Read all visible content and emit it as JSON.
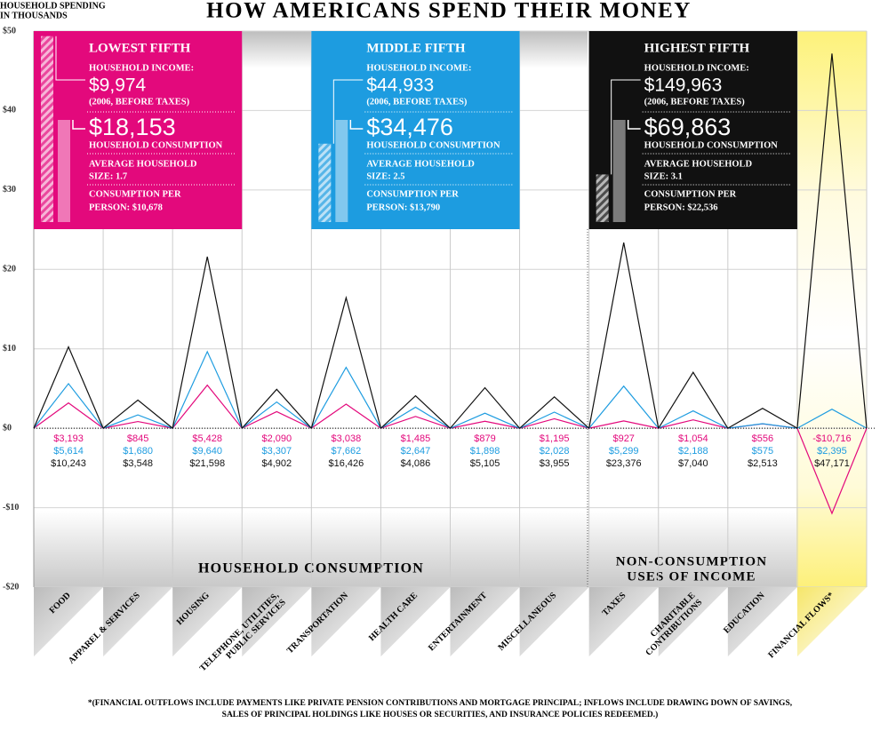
{
  "chart_data": {
    "type": "line",
    "title": "HOW AMERICANS SPEND THEIR MONEY",
    "y_axis_label": [
      "HOUSEHOLD SPENDING",
      "IN THOUSANDS"
    ],
    "categories": [
      [
        "FOOD"
      ],
      [
        "APPAREL & SERVICES"
      ],
      [
        "HOUSING"
      ],
      [
        "TELEPHONE, UTILITIES,",
        "PUBLIC SERVICES"
      ],
      [
        "TRANSPORTATION"
      ],
      [
        "HEALTH CARE"
      ],
      [
        "ENTERTAINMENT"
      ],
      [
        "MISCELLANEOUS"
      ],
      [
        "TAXES"
      ],
      [
        "CHARITABLE",
        "CONTRIBUTIONS"
      ],
      [
        "EDUCATION"
      ],
      [
        "FINANCIAL FLOWS*"
      ]
    ],
    "series": [
      {
        "name": "LOWEST FIFTH",
        "color": "#e3097c",
        "values": [
          3.193,
          0.845,
          5.428,
          2.09,
          3.038,
          1.485,
          0.879,
          1.195,
          0.927,
          1.054,
          0.556,
          -10.716
        ],
        "value_labels": [
          "$3,193",
          "$845",
          "$5,428",
          "$2,090",
          "$3,038",
          "$1,485",
          "$879",
          "$1,195",
          "$927",
          "$1,054",
          "$556",
          "-$10,716"
        ]
      },
      {
        "name": "MIDDLE FIFTH",
        "color": "#1d9ce0",
        "values": [
          5.614,
          1.68,
          9.64,
          3.307,
          7.662,
          2.647,
          1.898,
          2.028,
          5.299,
          2.188,
          0.575,
          2.395
        ],
        "value_labels": [
          "$5,614",
          "$1,680",
          "$9,640",
          "$3,307",
          "$7,662",
          "$2,647",
          "$1,898",
          "$2,028",
          "$5,299",
          "$2,188",
          "$575",
          "$2,395"
        ]
      },
      {
        "name": "HIGHEST FIFTH",
        "color": "#111111",
        "values": [
          10.243,
          3.548,
          21.598,
          4.902,
          16.426,
          4.086,
          5.105,
          3.955,
          23.376,
          7.04,
          2.513,
          47.171
        ],
        "value_labels": [
          "$10,243",
          "$3,548",
          "$21,598",
          "$4,902",
          "$16,426",
          "$4,086",
          "$5,105",
          "$3,955",
          "$23,376",
          "$7,040",
          "$2,513",
          "$47,171"
        ]
      }
    ],
    "panels": [
      {
        "income_heading": "HOUSEHOLD INCOME:",
        "income": 9974,
        "income_label": "$9,974",
        "income_note": "(2006, BEFORE TAXES)",
        "consumption": 18153,
        "consumption_label": "$18,153",
        "consumption_heading": "HOUSEHOLD CONSUMPTION",
        "size_lines": [
          "AVERAGE HOUSEHOLD",
          "SIZE: 1.7"
        ],
        "per_person_lines": [
          "CONSUMPTION PER",
          "PERSON: $10,678"
        ]
      },
      {
        "income_heading": "HOUSEHOLD INCOME:",
        "income": 44933,
        "income_label": "$44,933",
        "income_note": "(2006, BEFORE TAXES)",
        "consumption": 34476,
        "consumption_label": "$34,476",
        "consumption_heading": "HOUSEHOLD CONSUMPTION",
        "size_lines": [
          "AVERAGE HOUSEHOLD",
          "SIZE: 2.5"
        ],
        "per_person_lines": [
          "CONSUMPTION PER",
          "PERSON: $13,790"
        ]
      },
      {
        "income_heading": "HOUSEHOLD INCOME:",
        "income": 149963,
        "income_label": "$149,963",
        "income_note": "(2006, BEFORE TAXES)",
        "consumption": 69863,
        "consumption_label": "$69,863",
        "consumption_heading": "HOUSEHOLD CONSUMPTION",
        "size_lines": [
          "AVERAGE HOUSEHOLD",
          "SIZE: 3.1"
        ],
        "per_person_lines": [
          "CONSUMPTION PER",
          "PERSON: $22,536"
        ]
      }
    ],
    "section_labels": {
      "consumption": "HOUSEHOLD CONSUMPTION",
      "non_consumption": [
        "NON-CONSUMPTION",
        "USES OF INCOME"
      ]
    },
    "footnote": [
      "*(FINANCIAL OUTFLOWS INCLUDE PAYMENTS LIKE PRIVATE PENSION CONTRIBUTIONS AND MORTGAGE PRINCIPAL; INFLOWS INCLUDE DRAWING DOWN OF SAVINGS,",
      "SALES OF PRINCIPAL HOLDINGS LIKE HOUSES OR SECURITIES, AND INSURANCE POLICIES REDEEMED.)"
    ],
    "ylim": [
      -20,
      50
    ],
    "yticks": [
      {
        "value": -20,
        "label": "-$20"
      },
      {
        "value": -10,
        "label": "-$10"
      },
      {
        "value": 0,
        "label": "$0"
      },
      {
        "value": 10,
        "label": "$10"
      },
      {
        "value": 20,
        "label": "$20"
      },
      {
        "value": 30,
        "label": "$30"
      },
      {
        "value": 40,
        "label": "$40"
      },
      {
        "value": 50,
        "label": "$50"
      }
    ],
    "grid": true
  }
}
